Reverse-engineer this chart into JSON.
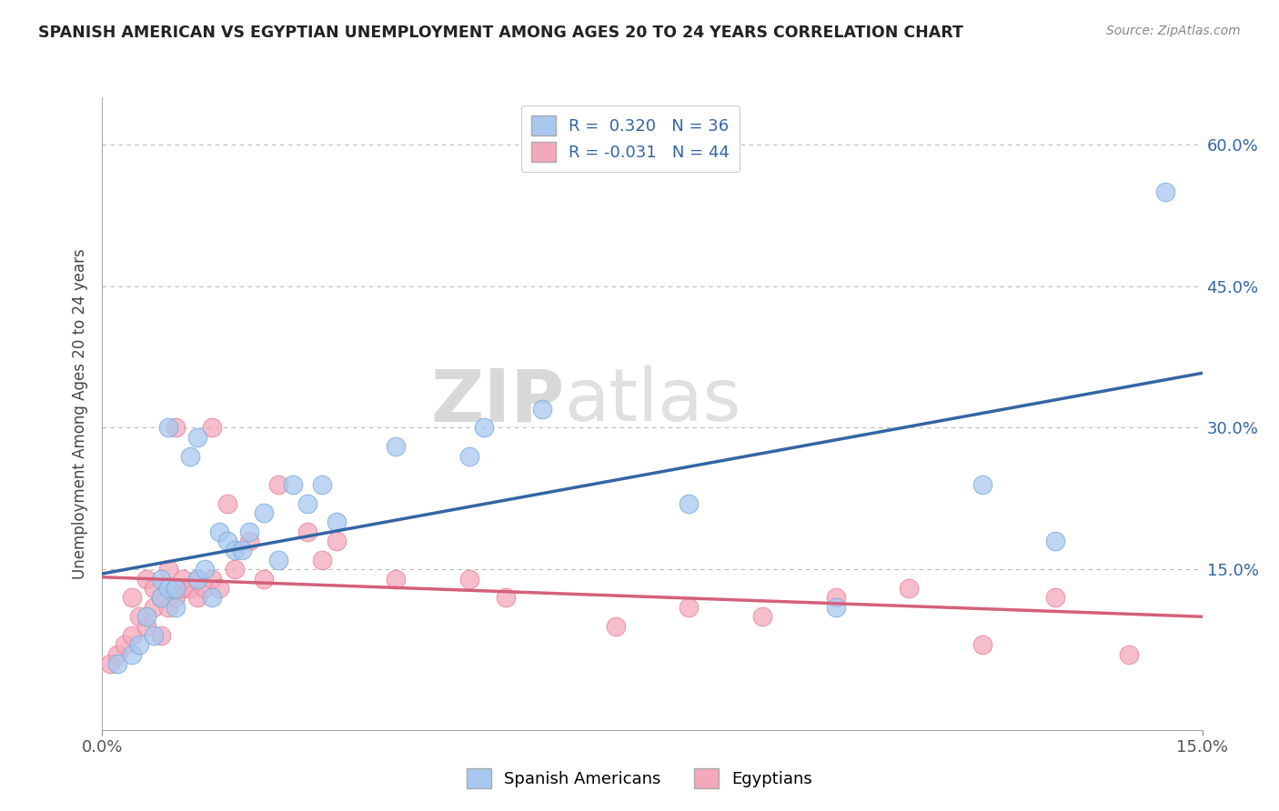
{
  "title": "SPANISH AMERICAN VS EGYPTIAN UNEMPLOYMENT AMONG AGES 20 TO 24 YEARS CORRELATION CHART",
  "source": "Source: ZipAtlas.com",
  "ylabel": "Unemployment Among Ages 20 to 24 years",
  "xlim": [
    0.0,
    0.15
  ],
  "ylim": [
    -0.02,
    0.65
  ],
  "xtick_positions": [
    0.0,
    0.15
  ],
  "xtick_labels": [
    "0.0%",
    "15.0%"
  ],
  "ytick_positions": [
    0.15,
    0.3,
    0.45,
    0.6
  ],
  "ytick_labels": [
    "15.0%",
    "30.0%",
    "45.0%",
    "60.0%"
  ],
  "blue_color": "#A8C8F0",
  "pink_color": "#F4A8BC",
  "blue_edge_color": "#7AAAD8",
  "pink_edge_color": "#E8809A",
  "blue_line_color": "#3465A4",
  "pink_line_color": "#D4607A",
  "r_blue": 0.32,
  "n_blue": 36,
  "r_pink": -0.031,
  "n_pink": 44,
  "blue_x": [
    0.002,
    0.004,
    0.005,
    0.006,
    0.007,
    0.008,
    0.008,
    0.009,
    0.009,
    0.01,
    0.01,
    0.012,
    0.013,
    0.013,
    0.014,
    0.015,
    0.016,
    0.017,
    0.018,
    0.019,
    0.02,
    0.022,
    0.024,
    0.026,
    0.028,
    0.03,
    0.032,
    0.04,
    0.05,
    0.052,
    0.06,
    0.08,
    0.1,
    0.12,
    0.13,
    0.145
  ],
  "blue_y": [
    0.05,
    0.06,
    0.07,
    0.1,
    0.08,
    0.12,
    0.14,
    0.13,
    0.3,
    0.11,
    0.13,
    0.27,
    0.29,
    0.14,
    0.15,
    0.12,
    0.19,
    0.18,
    0.17,
    0.17,
    0.19,
    0.21,
    0.16,
    0.24,
    0.22,
    0.24,
    0.2,
    0.28,
    0.27,
    0.3,
    0.32,
    0.22,
    0.11,
    0.24,
    0.18,
    0.55
  ],
  "pink_x": [
    0.001,
    0.002,
    0.003,
    0.004,
    0.004,
    0.005,
    0.006,
    0.006,
    0.007,
    0.007,
    0.008,
    0.008,
    0.009,
    0.009,
    0.01,
    0.01,
    0.011,
    0.011,
    0.012,
    0.013,
    0.013,
    0.014,
    0.015,
    0.015,
    0.016,
    0.017,
    0.018,
    0.02,
    0.022,
    0.024,
    0.028,
    0.03,
    0.032,
    0.04,
    0.05,
    0.055,
    0.07,
    0.08,
    0.09,
    0.1,
    0.11,
    0.12,
    0.13,
    0.14
  ],
  "pink_y": [
    0.05,
    0.06,
    0.07,
    0.08,
    0.12,
    0.1,
    0.09,
    0.14,
    0.11,
    0.13,
    0.08,
    0.12,
    0.11,
    0.15,
    0.12,
    0.3,
    0.13,
    0.14,
    0.13,
    0.14,
    0.12,
    0.13,
    0.14,
    0.3,
    0.13,
    0.22,
    0.15,
    0.18,
    0.14,
    0.24,
    0.19,
    0.16,
    0.18,
    0.14,
    0.14,
    0.12,
    0.09,
    0.11,
    0.1,
    0.12,
    0.13,
    0.07,
    0.12,
    0.06
  ],
  "watermark_zip": "ZIP",
  "watermark_atlas": "atlas",
  "background_color": "#FFFFFF",
  "grid_color": "#BBBBBB",
  "legend_blue_label": "R =  0.320   N = 36",
  "legend_pink_label": "R = -0.031   N = 44",
  "footer_blue_label": "Spanish Americans",
  "footer_pink_label": "Egyptians"
}
